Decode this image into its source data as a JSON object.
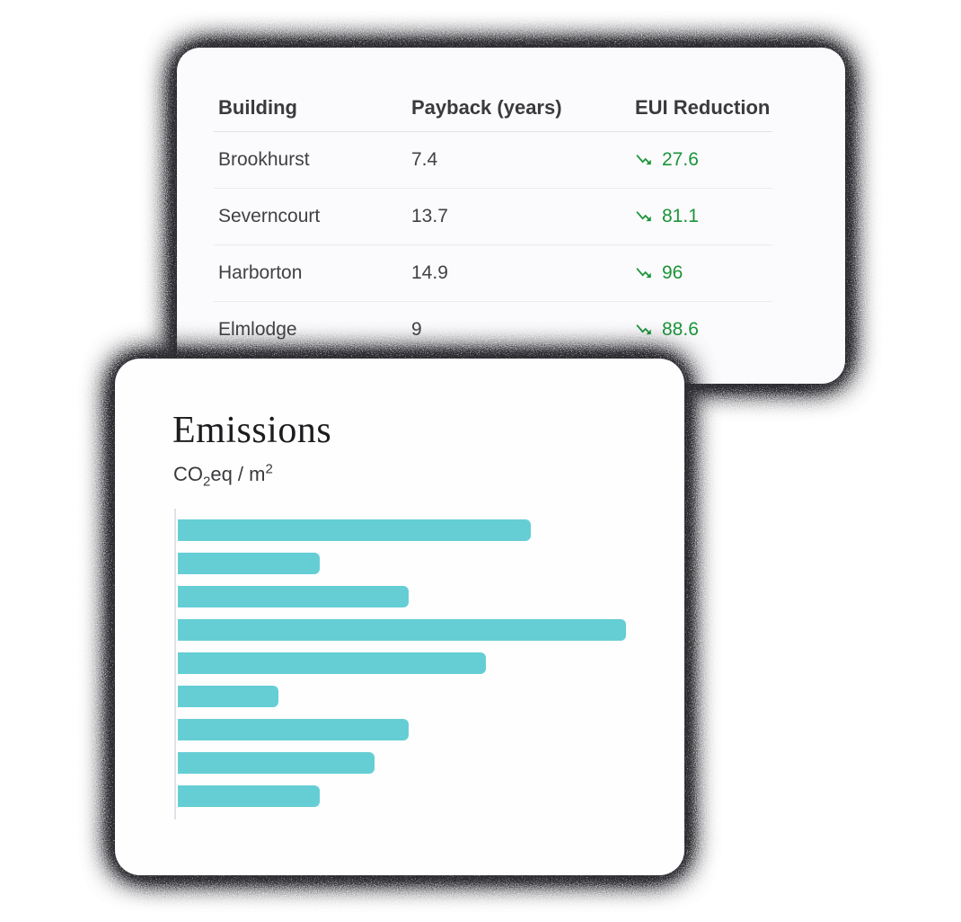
{
  "table_card": {
    "columns": [
      "Building",
      "Payback (years)",
      "EUI Reduction"
    ],
    "rows": [
      {
        "building": "Brookhurst",
        "payback": "7.4",
        "eui_reduction": "27.6"
      },
      {
        "building": "Severncourt",
        "payback": "13.7",
        "eui_reduction": "81.1"
      },
      {
        "building": "Harborton",
        "payback": "14.9",
        "eui_reduction": "96"
      },
      {
        "building": "Elmlodge",
        "payback": "9",
        "eui_reduction": "88.6"
      }
    ],
    "reduction_color": "#1a9539",
    "trend_icon": "trending-down-arrow-icon"
  },
  "emissions_card": {
    "title": "Emissions",
    "subtitle": {
      "prefix": "CO",
      "sub": "2",
      "mid": "eq / m",
      "sup": "2"
    }
  },
  "chart_data": {
    "type": "bar",
    "orientation": "horizontal",
    "title": "Emissions",
    "unit_label": "CO2eq / m2",
    "values_pct_of_max": [
      78.8,
      31.7,
      51.5,
      100,
      68.7,
      22.4,
      51.5,
      43.9,
      31.7
    ],
    "bar_color": "#65ced4",
    "axis_tick_labels_visible": false,
    "legend": "none",
    "grid": "off"
  }
}
